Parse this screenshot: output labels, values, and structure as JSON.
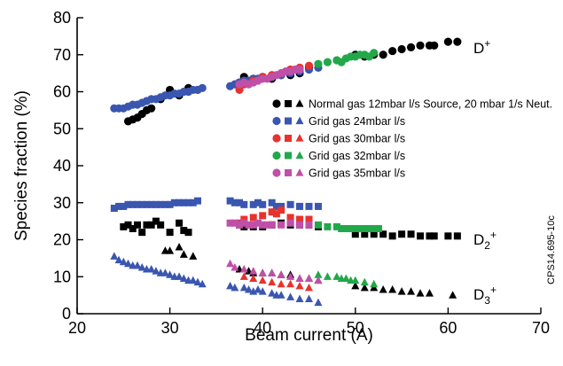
{
  "chart_data": {
    "type": "scatter",
    "title": "",
    "xlabel": "Beam current (A)",
    "ylabel": "Species fraction (%)",
    "xlim": [
      20,
      70
    ],
    "ylim": [
      0,
      80
    ],
    "xticks": [
      20,
      30,
      40,
      50,
      60,
      70
    ],
    "yticks": [
      0,
      10,
      20,
      30,
      40,
      50,
      60,
      70,
      80
    ],
    "grid": false,
    "legend_position": "center-right",
    "species_labels": {
      "d1": {
        "base": "D",
        "sup": "+"
      },
      "d2": {
        "base": "D",
        "sub": "2",
        "sup": "+"
      },
      "d3": {
        "base": "D",
        "sub": "3",
        "sup": "+"
      }
    },
    "side_code": "CPS14.695-10c",
    "series": [
      {
        "name": "Normal gas 12mbar l/s Source, 20 mbar 1/s Neut.",
        "color": "#000000",
        "legend_size": 10.5,
        "D+": [
          [
            25.5,
            52
          ],
          [
            26,
            52.5
          ],
          [
            26.5,
            53
          ],
          [
            27,
            54
          ],
          [
            27.5,
            55
          ],
          [
            28,
            55.5
          ],
          [
            29,
            58
          ],
          [
            30,
            60.5
          ],
          [
            31,
            59
          ],
          [
            32,
            61
          ],
          [
            33,
            60.5
          ],
          [
            37.5,
            62.5
          ],
          [
            38,
            64
          ],
          [
            39,
            63.5
          ],
          [
            40,
            64
          ],
          [
            41,
            63.5
          ],
          [
            42,
            64.5
          ],
          [
            43,
            64.5
          ],
          [
            44,
            65
          ],
          [
            45,
            66.5
          ],
          [
            50,
            70
          ],
          [
            51,
            69.5
          ],
          [
            52,
            70
          ],
          [
            53,
            70
          ],
          [
            54,
            71
          ],
          [
            55,
            71.5
          ],
          [
            56,
            72
          ],
          [
            57,
            72.5
          ],
          [
            58,
            72.5
          ],
          [
            58.5,
            72.5
          ],
          [
            60,
            73.5
          ],
          [
            61,
            73.5
          ]
        ],
        "D2+": [
          [
            25,
            23.5
          ],
          [
            25.5,
            24
          ],
          [
            26,
            23
          ],
          [
            26.5,
            24
          ],
          [
            27,
            22
          ],
          [
            27.5,
            24
          ],
          [
            28,
            24
          ],
          [
            28.5,
            25
          ],
          [
            29,
            24
          ],
          [
            30,
            22
          ],
          [
            31,
            24.5
          ],
          [
            31.5,
            22.5
          ],
          [
            32,
            22
          ],
          [
            37.5,
            24
          ],
          [
            38,
            23.5
          ],
          [
            39,
            23.5
          ],
          [
            40,
            23.5
          ],
          [
            41,
            24
          ],
          [
            42,
            24.5
          ],
          [
            43,
            24
          ],
          [
            44,
            24
          ],
          [
            45,
            24
          ],
          [
            46,
            23.5
          ],
          [
            50,
            21.5
          ],
          [
            51,
            21.5
          ],
          [
            52,
            21.5
          ],
          [
            53,
            21.5
          ],
          [
            54,
            21
          ],
          [
            55,
            21.5
          ],
          [
            56,
            21.5
          ],
          [
            57,
            21
          ],
          [
            58,
            21
          ],
          [
            58.5,
            21
          ],
          [
            60,
            21
          ],
          [
            61,
            21
          ]
        ],
        "D3+": [
          [
            29.5,
            17
          ],
          [
            30,
            17
          ],
          [
            31,
            18
          ],
          [
            31.5,
            16
          ],
          [
            32.5,
            15.5
          ],
          [
            37.5,
            12
          ],
          [
            38.5,
            11.5
          ],
          [
            39,
            11
          ],
          [
            40,
            11
          ],
          [
            41,
            11
          ],
          [
            42,
            10.5
          ],
          [
            43,
            10.5
          ],
          [
            44,
            9.5
          ],
          [
            45,
            9.5
          ],
          [
            46,
            9
          ],
          [
            50,
            7.5
          ],
          [
            51,
            7
          ],
          [
            52,
            7
          ],
          [
            53,
            6.5
          ],
          [
            54,
            6.5
          ],
          [
            55,
            6
          ],
          [
            56,
            6
          ],
          [
            57,
            5.5
          ],
          [
            58,
            5.5
          ],
          [
            60.5,
            5
          ]
        ]
      },
      {
        "name": "Grid gas 24mbar l/s",
        "color": "#3a56b0",
        "legend_size": 12.5,
        "D+": [
          [
            24,
            55.5
          ],
          [
            24.5,
            55.5
          ],
          [
            25,
            55.5
          ],
          [
            25.5,
            56
          ],
          [
            26,
            56.5
          ],
          [
            26.5,
            56.5
          ],
          [
            27,
            57
          ],
          [
            27.5,
            57.5
          ],
          [
            28,
            58
          ],
          [
            28.5,
            58
          ],
          [
            29,
            58.5
          ],
          [
            29.5,
            59
          ],
          [
            30,
            59
          ],
          [
            30.5,
            59.5
          ],
          [
            31,
            59.5
          ],
          [
            31.5,
            60
          ],
          [
            32,
            60
          ],
          [
            32.5,
            60.5
          ],
          [
            33,
            60.5
          ],
          [
            33.5,
            61
          ],
          [
            36.5,
            61.5
          ],
          [
            37,
            62
          ],
          [
            37.5,
            62.5
          ],
          [
            38,
            63
          ],
          [
            38.5,
            63
          ],
          [
            39,
            63.5
          ],
          [
            39.5,
            63.5
          ],
          [
            40,
            64
          ],
          [
            41,
            64
          ],
          [
            42,
            64.5
          ],
          [
            43,
            65
          ],
          [
            44,
            65.5
          ],
          [
            45,
            66
          ],
          [
            46,
            66.5
          ]
        ],
        "D2+": [
          [
            24,
            28.5
          ],
          [
            24.5,
            29
          ],
          [
            25,
            29
          ],
          [
            25.5,
            29.5
          ],
          [
            26,
            29.5
          ],
          [
            26.5,
            29.5
          ],
          [
            27,
            29.5
          ],
          [
            27.5,
            29.5
          ],
          [
            28,
            29.5
          ],
          [
            28.5,
            29.5
          ],
          [
            29,
            29.5
          ],
          [
            29.5,
            29.5
          ],
          [
            30,
            29.5
          ],
          [
            30.5,
            30
          ],
          [
            31,
            30
          ],
          [
            31.5,
            30
          ],
          [
            32,
            30
          ],
          [
            32.5,
            30
          ],
          [
            33,
            30.5
          ],
          [
            36.5,
            30.5
          ],
          [
            37,
            30
          ],
          [
            37.5,
            30
          ],
          [
            38,
            29.5
          ],
          [
            39,
            29.5
          ],
          [
            39.5,
            30
          ],
          [
            40,
            29.5
          ],
          [
            41,
            30
          ],
          [
            41.5,
            29
          ],
          [
            42,
            29
          ],
          [
            43,
            29.5
          ],
          [
            44,
            29
          ],
          [
            45,
            29
          ],
          [
            46,
            29
          ]
        ],
        "D3+": [
          [
            24,
            15.5
          ],
          [
            24.5,
            14.5
          ],
          [
            25,
            14
          ],
          [
            25.5,
            13.5
          ],
          [
            26,
            13
          ],
          [
            26.5,
            13
          ],
          [
            27,
            12.5
          ],
          [
            27.5,
            12
          ],
          [
            28,
            12
          ],
          [
            28.5,
            11.5
          ],
          [
            29,
            11
          ],
          [
            29.5,
            11
          ],
          [
            30,
            10.5
          ],
          [
            30.5,
            10
          ],
          [
            31,
            10
          ],
          [
            31.5,
            9.5
          ],
          [
            32,
            9
          ],
          [
            32.5,
            9
          ],
          [
            33,
            8.5
          ],
          [
            33.5,
            8
          ],
          [
            36.5,
            7.5
          ],
          [
            37,
            7
          ],
          [
            38,
            7
          ],
          [
            38.5,
            6.5
          ],
          [
            39,
            6
          ],
          [
            39.5,
            6.5
          ],
          [
            40,
            6
          ],
          [
            41,
            5.5
          ],
          [
            41.5,
            5
          ],
          [
            42,
            5
          ],
          [
            43,
            4.5
          ],
          [
            44,
            4
          ],
          [
            45,
            4
          ],
          [
            46,
            3
          ]
        ]
      },
      {
        "name": "Grid gas 30mbar l/s",
        "color": "#e8322d",
        "legend_size": 12.5,
        "D+": [
          [
            37.5,
            60.5
          ],
          [
            38,
            62
          ],
          [
            39,
            63
          ],
          [
            40,
            64
          ],
          [
            41,
            64.5
          ],
          [
            42,
            65
          ],
          [
            43,
            66
          ],
          [
            44,
            66.5
          ],
          [
            45,
            67
          ]
        ],
        "D2+": [
          [
            37.5,
            24.5
          ],
          [
            38,
            25.5
          ],
          [
            39,
            26
          ],
          [
            40,
            26.5
          ],
          [
            41,
            27.5
          ],
          [
            41.5,
            27
          ],
          [
            42,
            28
          ],
          [
            43,
            26
          ],
          [
            44,
            25.5
          ],
          [
            45,
            25.5
          ]
        ],
        "D3+": [
          [
            38,
            10
          ],
          [
            39,
            9.5
          ],
          [
            40,
            9
          ],
          [
            41,
            8.5
          ],
          [
            42,
            8
          ],
          [
            43,
            8
          ],
          [
            44,
            7.5
          ],
          [
            45,
            7
          ]
        ]
      },
      {
        "name": "Grid gas 32mbar l/s",
        "color": "#22a84a",
        "legend_size": 12.5,
        "D+": [
          [
            46,
            67.5
          ],
          [
            47,
            68
          ],
          [
            48,
            68.5
          ],
          [
            48.5,
            68
          ],
          [
            49,
            69
          ],
          [
            49.5,
            69.5
          ],
          [
            50,
            69.5
          ],
          [
            50.5,
            70
          ],
          [
            51,
            70
          ],
          [
            51.5,
            69.5
          ],
          [
            52,
            70.5
          ]
        ],
        "D2+": [
          [
            46,
            24
          ],
          [
            47,
            23.5
          ],
          [
            48,
            23.5
          ],
          [
            48.5,
            23
          ],
          [
            49,
            23
          ],
          [
            49.5,
            23
          ],
          [
            50,
            23
          ],
          [
            50.5,
            23
          ],
          [
            51,
            23
          ],
          [
            51.5,
            23
          ],
          [
            52,
            23
          ],
          [
            52.5,
            23
          ]
        ],
        "D3+": [
          [
            46,
            10.5
          ],
          [
            47,
            10
          ],
          [
            48,
            10
          ],
          [
            48.5,
            9.5
          ],
          [
            49,
            9.5
          ],
          [
            49.5,
            9
          ],
          [
            50,
            9
          ],
          [
            51,
            8.5
          ],
          [
            52,
            8
          ]
        ]
      },
      {
        "name": "Grid gas 35mbar l/s",
        "color": "#c04fa8",
        "legend_size": 12.5,
        "D+": [
          [
            37.5,
            62
          ],
          [
            38,
            62.5
          ],
          [
            38.5,
            62
          ],
          [
            39,
            62.5
          ],
          [
            39.5,
            63
          ],
          [
            40,
            63.5
          ],
          [
            40.5,
            63.5
          ],
          [
            41,
            64
          ],
          [
            41.5,
            64.5
          ],
          [
            42,
            65
          ],
          [
            42.5,
            65.5
          ],
          [
            43,
            65.5
          ],
          [
            43.5,
            66
          ],
          [
            44,
            66
          ]
        ],
        "D2+": [
          [
            36.5,
            24.5
          ],
          [
            37,
            24.5
          ],
          [
            37.5,
            24
          ],
          [
            38,
            24.5
          ],
          [
            38.5,
            24
          ],
          [
            39,
            24
          ],
          [
            39.5,
            24.5
          ],
          [
            40,
            24
          ],
          [
            40.5,
            24
          ],
          [
            41,
            24
          ],
          [
            42,
            24
          ],
          [
            43,
            24.5
          ],
          [
            44,
            24
          ],
          [
            45,
            24
          ]
        ],
        "D3+": [
          [
            36.5,
            13.5
          ],
          [
            37,
            12.5
          ],
          [
            38,
            12
          ],
          [
            39,
            11.5
          ],
          [
            40,
            11
          ],
          [
            41,
            11
          ],
          [
            42,
            10.5
          ],
          [
            43,
            10
          ],
          [
            44,
            9.5
          ],
          [
            45,
            9.5
          ],
          [
            46,
            9
          ]
        ]
      }
    ]
  }
}
